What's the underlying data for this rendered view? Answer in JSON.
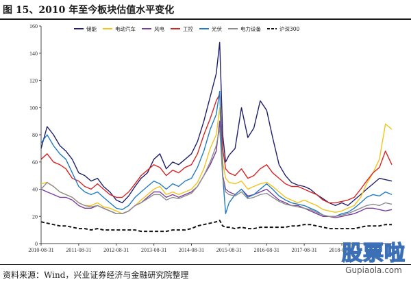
{
  "header": {
    "title": "图 15、2010 年至今板块估值水平变化"
  },
  "footer": {
    "source": "资料来源：Wind，兴业证券经济与金融研究院整理"
  },
  "watermark": {
    "cn": "股票啦",
    "en": "Gupiaola.com"
  },
  "chart_data": {
    "type": "line",
    "title": "",
    "xlabel": "",
    "ylabel": "",
    "ylim": [
      0,
      160
    ],
    "yticks": [
      0,
      20,
      40,
      60,
      80,
      100,
      120,
      140,
      160
    ],
    "xticks": [
      "2010-08-31",
      "2011-08-31",
      "2012-08-31",
      "2013-08-31",
      "2014-08-31",
      "2015-08-31",
      "2016-08-31",
      "2017-08-31",
      "2018-08-31"
    ],
    "x": [
      2010.67,
      2010.83,
      2011.0,
      2011.17,
      2011.33,
      2011.5,
      2011.67,
      2011.83,
      2012.0,
      2012.17,
      2012.33,
      2012.5,
      2012.67,
      2012.83,
      2013.0,
      2013.17,
      2013.33,
      2013.5,
      2013.67,
      2013.83,
      2014.0,
      2014.17,
      2014.33,
      2014.5,
      2014.67,
      2014.83,
      2015.0,
      2015.17,
      2015.33,
      2015.42,
      2015.5,
      2015.58,
      2015.67,
      2015.83,
      2016.0,
      2016.17,
      2016.33,
      2016.5,
      2016.67,
      2016.83,
      2017.0,
      2017.17,
      2017.33,
      2017.5,
      2017.67,
      2017.83,
      2018.0,
      2018.17,
      2018.33,
      2018.5,
      2018.67,
      2018.83,
      2019.0,
      2019.17,
      2019.33,
      2019.5,
      2019.67,
      2019.83,
      2020.0
    ],
    "legend_position": "top",
    "grid": false,
    "series": [
      {
        "name": "储能",
        "color": "#1f1f6b",
        "dash": false,
        "values": [
          70,
          86,
          80,
          72,
          68,
          62,
          52,
          50,
          46,
          48,
          42,
          38,
          32,
          30,
          35,
          42,
          48,
          52,
          62,
          66,
          55,
          60,
          58,
          62,
          66,
          75,
          90,
          108,
          125,
          148,
          80,
          60,
          65,
          70,
          100,
          78,
          85,
          105,
          98,
          78,
          58,
          50,
          45,
          43,
          42,
          40,
          36,
          33,
          30,
          28,
          30,
          28,
          32,
          36,
          40,
          44,
          48,
          47,
          46
        ]
      },
      {
        "name": "电动汽车",
        "color": "#f2c318",
        "dash": false,
        "values": [
          44,
          45,
          42,
          38,
          36,
          34,
          30,
          28,
          28,
          30,
          27,
          26,
          24,
          22,
          24,
          28,
          32,
          36,
          40,
          42,
          36,
          38,
          36,
          38,
          40,
          45,
          55,
          70,
          80,
          100,
          60,
          48,
          45,
          44,
          46,
          40,
          42,
          44,
          45,
          42,
          38,
          34,
          32,
          30,
          32,
          30,
          28,
          25,
          24,
          23,
          24,
          26,
          28,
          34,
          44,
          52,
          62,
          88,
          84
        ]
      },
      {
        "name": "风电",
        "color": "#7a3c9a",
        "dash": false,
        "values": [
          40,
          38,
          36,
          34,
          34,
          32,
          28,
          26,
          26,
          28,
          26,
          24,
          22,
          22,
          24,
          28,
          30,
          34,
          38,
          38,
          34,
          36,
          34,
          36,
          38,
          42,
          50,
          58,
          68,
          90,
          50,
          40,
          38,
          36,
          40,
          35,
          36,
          38,
          40,
          36,
          32,
          30,
          28,
          28,
          26,
          24,
          22,
          20,
          20,
          19,
          20,
          21,
          22,
          24,
          26,
          26,
          25,
          24,
          25
        ]
      },
      {
        "name": "工控",
        "color": "#d62424",
        "dash": false,
        "values": [
          62,
          66,
          60,
          58,
          55,
          48,
          46,
          42,
          40,
          44,
          40,
          36,
          34,
          34,
          38,
          44,
          50,
          54,
          58,
          56,
          50,
          54,
          52,
          56,
          58,
          66,
          80,
          92,
          105,
          110,
          70,
          55,
          52,
          50,
          55,
          48,
          50,
          55,
          58,
          52,
          48,
          44,
          42,
          42,
          40,
          38,
          36,
          32,
          30,
          30,
          31,
          32,
          34,
          40,
          46,
          52,
          56,
          68,
          58
        ]
      },
      {
        "name": "光伏",
        "color": "#1f7bc4",
        "dash": false,
        "values": [
          74,
          80,
          72,
          66,
          62,
          52,
          42,
          38,
          36,
          38,
          34,
          30,
          26,
          25,
          28,
          34,
          38,
          42,
          46,
          44,
          40,
          44,
          42,
          46,
          48,
          56,
          68,
          84,
          95,
          112,
          50,
          22,
          30,
          36,
          40,
          34,
          36,
          40,
          44,
          40,
          35,
          32,
          30,
          29,
          28,
          26,
          24,
          21,
          20,
          20,
          22,
          23,
          26,
          30,
          34,
          36,
          35,
          38,
          36
        ]
      },
      {
        "name": "电力设备",
        "color": "#8c8c8c",
        "dash": false,
        "values": [
          40,
          45,
          42,
          38,
          36,
          34,
          30,
          28,
          27,
          28,
          26,
          24,
          22,
          22,
          24,
          28,
          30,
          33,
          36,
          36,
          32,
          34,
          33,
          35,
          37,
          42,
          50,
          60,
          72,
          85,
          48,
          38,
          36,
          35,
          38,
          33,
          34,
          36,
          37,
          34,
          31,
          29,
          28,
          27,
          26,
          25,
          23,
          21,
          20,
          20,
          21,
          22,
          24,
          26,
          28,
          29,
          28,
          30,
          29
        ]
      },
      {
        "name": "沪深300",
        "color": "#111111",
        "dash": true,
        "values": [
          16,
          15,
          14,
          13,
          13,
          12,
          11,
          11,
          10,
          11,
          10,
          10,
          10,
          10,
          10,
          10,
          9,
          9,
          9,
          9,
          9,
          10,
          10,
          10,
          11,
          13,
          14,
          15,
          16,
          17,
          13,
          12,
          12,
          11,
          12,
          11,
          11,
          12,
          12,
          12,
          12,
          12,
          13,
          13,
          14,
          14,
          13,
          12,
          11,
          11,
          11,
          11,
          11,
          12,
          13,
          13,
          13,
          14,
          14
        ]
      }
    ]
  }
}
